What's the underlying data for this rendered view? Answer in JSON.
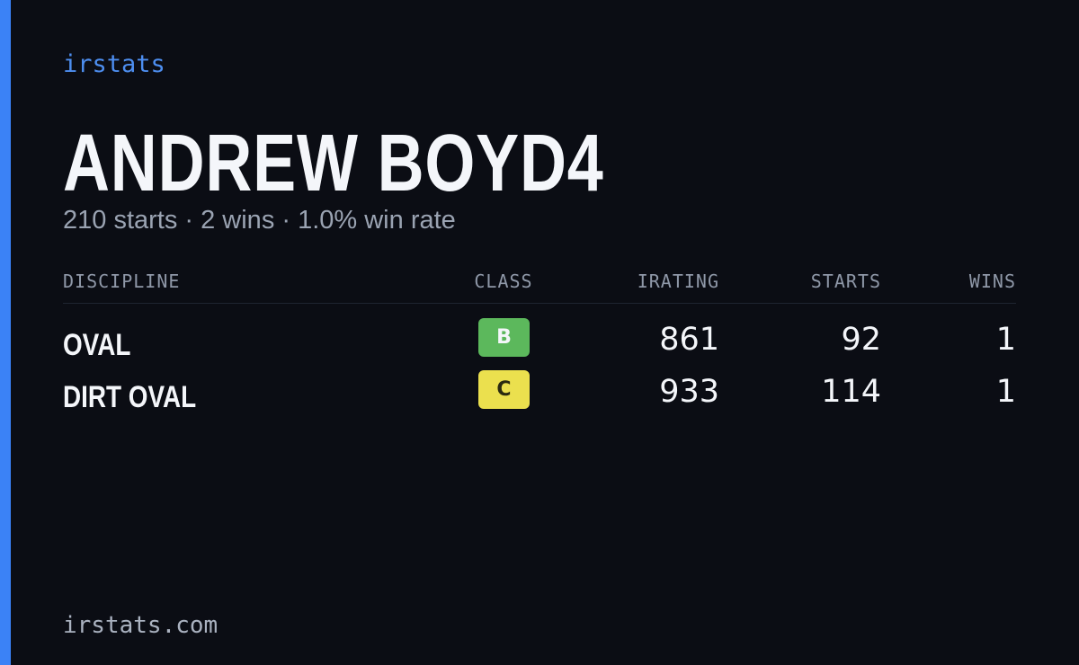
{
  "header": {
    "brand": "irstats",
    "title": "ANDREW BOYD4",
    "summary": "210 starts · 2 wins · 1.0% win rate"
  },
  "table": {
    "columns": [
      "DISCIPLINE",
      "CLASS",
      "IRATING",
      "STARTS",
      "WINS"
    ],
    "rows": [
      [
        "OVAL",
        "B",
        861,
        92,
        1
      ],
      [
        "DIRT OVAL",
        "C",
        933,
        114,
        1
      ]
    ]
  },
  "footer": {
    "url": "irstats.com"
  }
}
